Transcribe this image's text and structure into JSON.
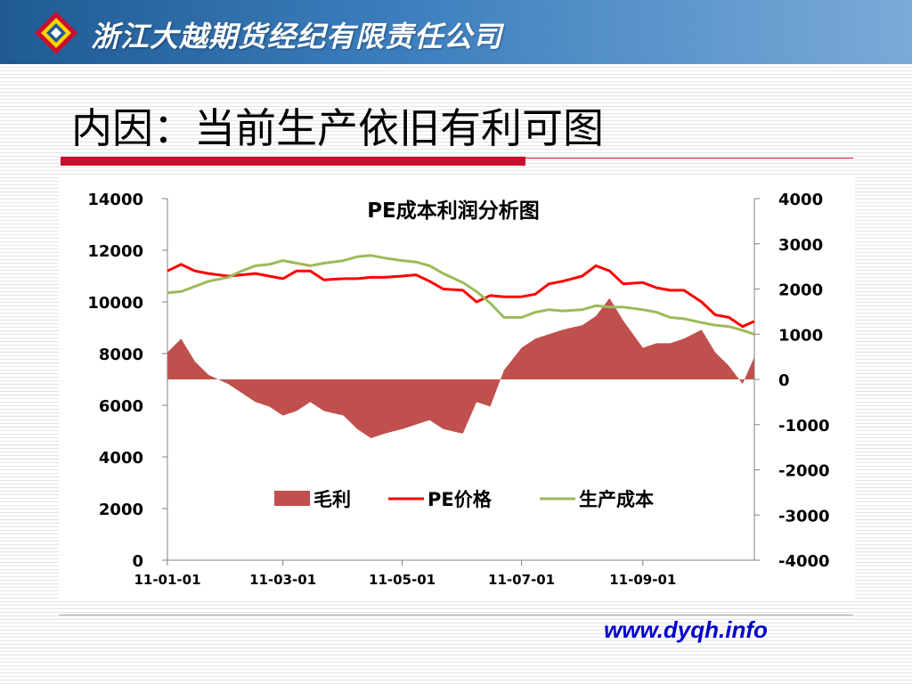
{
  "header": {
    "company_name": "浙江大越期货经纪有限责任公司"
  },
  "slide": {
    "title": "内因：当前生产依旧有利可图"
  },
  "footer": {
    "website": "www.dyqh.info"
  },
  "colors": {
    "margin_fill": "#c0504d",
    "price_line": "#ff0000",
    "cost_line": "#9bbb59",
    "title_rule": "#c8102e",
    "banner": "#2e6fb0"
  },
  "chart_data": {
    "type": "line",
    "title": "PE成本利润分析图",
    "x": [
      "2011-01-01",
      "2011-01-08",
      "2011-01-15",
      "2011-01-22",
      "2011-02-01",
      "2011-02-08",
      "2011-02-15",
      "2011-02-22",
      "2011-03-01",
      "2011-03-08",
      "2011-03-15",
      "2011-03-22",
      "2011-04-01",
      "2011-04-08",
      "2011-04-15",
      "2011-04-22",
      "2011-05-01",
      "2011-05-08",
      "2011-05-15",
      "2011-05-22",
      "2011-06-01",
      "2011-06-08",
      "2011-06-15",
      "2011-06-22",
      "2011-07-01",
      "2011-07-08",
      "2011-07-15",
      "2011-07-22",
      "2011-08-01",
      "2011-08-08",
      "2011-08-15",
      "2011-08-22",
      "2011-09-01",
      "2011-09-08",
      "2011-09-15",
      "2011-09-22",
      "2011-10-01",
      "2011-10-08",
      "2011-10-15",
      "2011-10-22",
      "2011-10-28"
    ],
    "x_tick_labels": [
      "11-01-01",
      "11-03-01",
      "11-05-01",
      "11-07-01",
      "11-09-01"
    ],
    "x_tick_dates": [
      "2011-01-01",
      "2011-03-01",
      "2011-05-01",
      "2011-07-01",
      "2011-09-01"
    ],
    "y_left": {
      "min": 0,
      "max": 14000,
      "ticks": [
        0,
        2000,
        4000,
        6000,
        8000,
        10000,
        12000,
        14000
      ]
    },
    "y_right": {
      "min": -4000,
      "max": 4000,
      "ticks": [
        -4000,
        -3000,
        -2000,
        -1000,
        0,
        1000,
        2000,
        3000,
        4000
      ]
    },
    "grid": false,
    "legend_position": "bottom-center",
    "series": [
      {
        "name": "毛利",
        "type": "area",
        "axis": "right",
        "color": "#c0504d",
        "values": [
          600,
          900,
          400,
          100,
          -100,
          -300,
          -500,
          -600,
          -800,
          -700,
          -500,
          -700,
          -800,
          -1100,
          -1300,
          -1200,
          -1100,
          -1000,
          -900,
          -1100,
          -1200,
          -500,
          -600,
          200,
          700,
          900,
          1000,
          1100,
          1200,
          1400,
          1800,
          1300,
          700,
          800,
          800,
          900,
          1100,
          600,
          300,
          -100,
          500
        ]
      },
      {
        "name": "PE价格",
        "type": "line",
        "axis": "left",
        "color": "#ff0000",
        "values": [
          11200,
          11450,
          11200,
          11100,
          11000,
          11050,
          11100,
          11000,
          10900,
          11200,
          11200,
          10850,
          10900,
          10900,
          10950,
          10950,
          11000,
          11050,
          10800,
          10500,
          10450,
          10000,
          10250,
          10200,
          10200,
          10300,
          10700,
          10800,
          11000,
          11400,
          11200,
          10700,
          10750,
          10550,
          10450,
          10450,
          10000,
          9500,
          9400,
          9050,
          9250
        ]
      },
      {
        "name": "生产成本",
        "type": "line",
        "axis": "left",
        "color": "#9bbb59",
        "values": [
          10350,
          10400,
          10600,
          10800,
          10950,
          11200,
          11400,
          11450,
          11600,
          11500,
          11400,
          11500,
          11600,
          11750,
          11800,
          11700,
          11600,
          11550,
          11400,
          11100,
          10750,
          10400,
          9950,
          9400,
          9400,
          9600,
          9700,
          9650,
          9700,
          9850,
          9800,
          9800,
          9700,
          9600,
          9400,
          9350,
          9200,
          9100,
          9050,
          8900,
          8750
        ]
      }
    ]
  }
}
